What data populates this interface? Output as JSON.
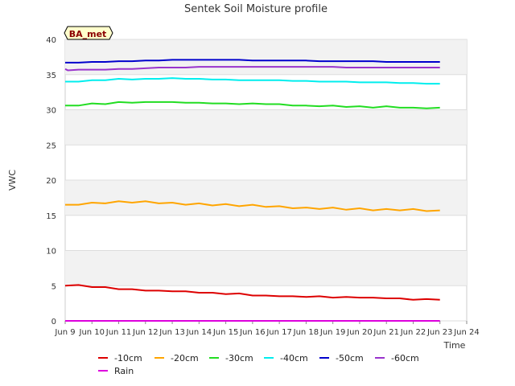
{
  "chart_data": {
    "type": "line",
    "title": "Sentek Soil Moisture profile",
    "badge": "BA_met",
    "xlabel": "Time",
    "ylabel": "VWC",
    "ylim": [
      0,
      40
    ],
    "yticks": [
      0,
      5,
      10,
      15,
      20,
      25,
      30,
      35,
      40
    ],
    "xlim": [
      0,
      15
    ],
    "xticks": [
      {
        "v": 0,
        "label": "Jun 9"
      },
      {
        "v": 1,
        "label": "Jun 10"
      },
      {
        "v": 2,
        "label": "Jun 11"
      },
      {
        "v": 3,
        "label": "Jun 12"
      },
      {
        "v": 4,
        "label": "Jun 13"
      },
      {
        "v": 5,
        "label": "Jun 14"
      },
      {
        "v": 6,
        "label": "Jun 15"
      },
      {
        "v": 7,
        "label": "Jun 16"
      },
      {
        "v": 8,
        "label": "Jun 17"
      },
      {
        "v": 9,
        "label": "Jun 18"
      },
      {
        "v": 10,
        "label": "Jun 19"
      },
      {
        "v": 11,
        "label": "Jun 20"
      },
      {
        "v": 12,
        "label": "Jun 21"
      },
      {
        "v": 13,
        "label": "Jun 22"
      },
      {
        "v": 14,
        "label": "Jun 23"
      },
      {
        "v": 15,
        "label": "Jun 24"
      }
    ],
    "grid": true,
    "legend_position": "bottom",
    "series": [
      {
        "name": "-10cm",
        "color": "#dd0000",
        "points": [
          [
            0,
            5.0
          ],
          [
            0.5,
            5.1
          ],
          [
            1,
            4.8
          ],
          [
            1.5,
            4.8
          ],
          [
            2,
            4.5
          ],
          [
            2.5,
            4.5
          ],
          [
            3,
            4.3
          ],
          [
            3.5,
            4.3
          ],
          [
            4,
            4.2
          ],
          [
            4.5,
            4.2
          ],
          [
            5,
            4.0
          ],
          [
            5.5,
            4.0
          ],
          [
            6,
            3.8
          ],
          [
            6.5,
            3.9
          ],
          [
            7,
            3.6
          ],
          [
            7.5,
            3.6
          ],
          [
            8,
            3.5
          ],
          [
            8.5,
            3.5
          ],
          [
            9,
            3.4
          ],
          [
            9.5,
            3.5
          ],
          [
            10,
            3.3
          ],
          [
            10.5,
            3.4
          ],
          [
            11,
            3.3
          ],
          [
            11.5,
            3.3
          ],
          [
            12,
            3.2
          ],
          [
            12.5,
            3.2
          ],
          [
            13,
            3.0
          ],
          [
            13.5,
            3.1
          ],
          [
            14,
            3.0
          ]
        ]
      },
      {
        "name": "-20cm",
        "color": "#ffa500",
        "points": [
          [
            0,
            16.5
          ],
          [
            0.5,
            16.5
          ],
          [
            1,
            16.8
          ],
          [
            1.5,
            16.7
          ],
          [
            2,
            17.0
          ],
          [
            2.5,
            16.8
          ],
          [
            3,
            17.0
          ],
          [
            3.5,
            16.7
          ],
          [
            4,
            16.8
          ],
          [
            4.5,
            16.5
          ],
          [
            5,
            16.7
          ],
          [
            5.5,
            16.4
          ],
          [
            6,
            16.6
          ],
          [
            6.5,
            16.3
          ],
          [
            7,
            16.5
          ],
          [
            7.5,
            16.2
          ],
          [
            8,
            16.3
          ],
          [
            8.5,
            16.0
          ],
          [
            9,
            16.1
          ],
          [
            9.5,
            15.9
          ],
          [
            10,
            16.1
          ],
          [
            10.5,
            15.8
          ],
          [
            11,
            16.0
          ],
          [
            11.5,
            15.7
          ],
          [
            12,
            15.9
          ],
          [
            12.5,
            15.7
          ],
          [
            13,
            15.9
          ],
          [
            13.5,
            15.6
          ],
          [
            14,
            15.7
          ]
        ]
      },
      {
        "name": "-30cm",
        "color": "#22dd22",
        "points": [
          [
            0,
            30.6
          ],
          [
            0.5,
            30.6
          ],
          [
            1,
            30.9
          ],
          [
            1.5,
            30.8
          ],
          [
            2,
            31.1
          ],
          [
            2.5,
            31.0
          ],
          [
            3,
            31.1
          ],
          [
            3.5,
            31.1
          ],
          [
            4,
            31.1
          ],
          [
            4.5,
            31.0
          ],
          [
            5,
            31.0
          ],
          [
            5.5,
            30.9
          ],
          [
            6,
            30.9
          ],
          [
            6.5,
            30.8
          ],
          [
            7,
            30.9
          ],
          [
            7.5,
            30.8
          ],
          [
            8,
            30.8
          ],
          [
            8.5,
            30.6
          ],
          [
            9,
            30.6
          ],
          [
            9.5,
            30.5
          ],
          [
            10,
            30.6
          ],
          [
            10.5,
            30.4
          ],
          [
            11,
            30.5
          ],
          [
            11.5,
            30.3
          ],
          [
            12,
            30.5
          ],
          [
            12.5,
            30.3
          ],
          [
            13,
            30.3
          ],
          [
            13.5,
            30.2
          ],
          [
            14,
            30.3
          ]
        ]
      },
      {
        "name": "-40cm",
        "color": "#00eeee",
        "points": [
          [
            0,
            34.0
          ],
          [
            0.5,
            34.0
          ],
          [
            1,
            34.2
          ],
          [
            1.5,
            34.2
          ],
          [
            2,
            34.4
          ],
          [
            2.5,
            34.3
          ],
          [
            3,
            34.4
          ],
          [
            3.5,
            34.4
          ],
          [
            4,
            34.5
          ],
          [
            4.5,
            34.4
          ],
          [
            5,
            34.4
          ],
          [
            5.5,
            34.3
          ],
          [
            6,
            34.3
          ],
          [
            6.5,
            34.2
          ],
          [
            7,
            34.2
          ],
          [
            7.5,
            34.2
          ],
          [
            8,
            34.2
          ],
          [
            8.5,
            34.1
          ],
          [
            9,
            34.1
          ],
          [
            9.5,
            34.0
          ],
          [
            10,
            34.0
          ],
          [
            10.5,
            34.0
          ],
          [
            11,
            33.9
          ],
          [
            11.5,
            33.9
          ],
          [
            12,
            33.9
          ],
          [
            12.5,
            33.8
          ],
          [
            13,
            33.8
          ],
          [
            13.5,
            33.7
          ],
          [
            14,
            33.7
          ]
        ]
      },
      {
        "name": "-50cm",
        "color": "#0000cc",
        "points": [
          [
            0,
            36.7
          ],
          [
            0.5,
            36.7
          ],
          [
            1,
            36.8
          ],
          [
            1.5,
            36.8
          ],
          [
            2,
            36.9
          ],
          [
            2.5,
            36.9
          ],
          [
            3,
            37.0
          ],
          [
            3.5,
            37.0
          ],
          [
            4,
            37.1
          ],
          [
            4.5,
            37.1
          ],
          [
            5,
            37.1
          ],
          [
            5.5,
            37.1
          ],
          [
            6,
            37.1
          ],
          [
            6.5,
            37.1
          ],
          [
            7,
            37.0
          ],
          [
            7.5,
            37.0
          ],
          [
            8,
            37.0
          ],
          [
            8.5,
            37.0
          ],
          [
            9,
            37.0
          ],
          [
            9.5,
            36.9
          ],
          [
            10,
            36.9
          ],
          [
            10.5,
            36.9
          ],
          [
            11,
            36.9
          ],
          [
            11.5,
            36.9
          ],
          [
            12,
            36.8
          ],
          [
            12.5,
            36.8
          ],
          [
            13,
            36.8
          ],
          [
            13.5,
            36.8
          ],
          [
            14,
            36.8
          ]
        ]
      },
      {
        "name": "-60cm",
        "color": "#9933cc",
        "points": [
          [
            0,
            35.8
          ],
          [
            0.1,
            35.6
          ],
          [
            0.5,
            35.7
          ],
          [
            1,
            35.7
          ],
          [
            1.5,
            35.7
          ],
          [
            2,
            35.8
          ],
          [
            2.5,
            35.8
          ],
          [
            3,
            35.9
          ],
          [
            3.5,
            36.0
          ],
          [
            4,
            36.0
          ],
          [
            4.5,
            36.0
          ],
          [
            5,
            36.1
          ],
          [
            5.5,
            36.1
          ],
          [
            6,
            36.1
          ],
          [
            6.5,
            36.1
          ],
          [
            7,
            36.1
          ],
          [
            7.5,
            36.1
          ],
          [
            8,
            36.1
          ],
          [
            8.5,
            36.1
          ],
          [
            9,
            36.1
          ],
          [
            9.5,
            36.1
          ],
          [
            10,
            36.1
          ],
          [
            10.5,
            36.0
          ],
          [
            11,
            36.0
          ],
          [
            11.5,
            36.0
          ],
          [
            12,
            36.0
          ],
          [
            12.5,
            36.0
          ],
          [
            13,
            36.0
          ],
          [
            13.5,
            36.0
          ],
          [
            14,
            36.0
          ]
        ]
      },
      {
        "name": "Rain",
        "color": "#dd00dd",
        "points": [
          [
            0,
            0.0
          ],
          [
            14,
            0.0
          ]
        ]
      }
    ]
  }
}
